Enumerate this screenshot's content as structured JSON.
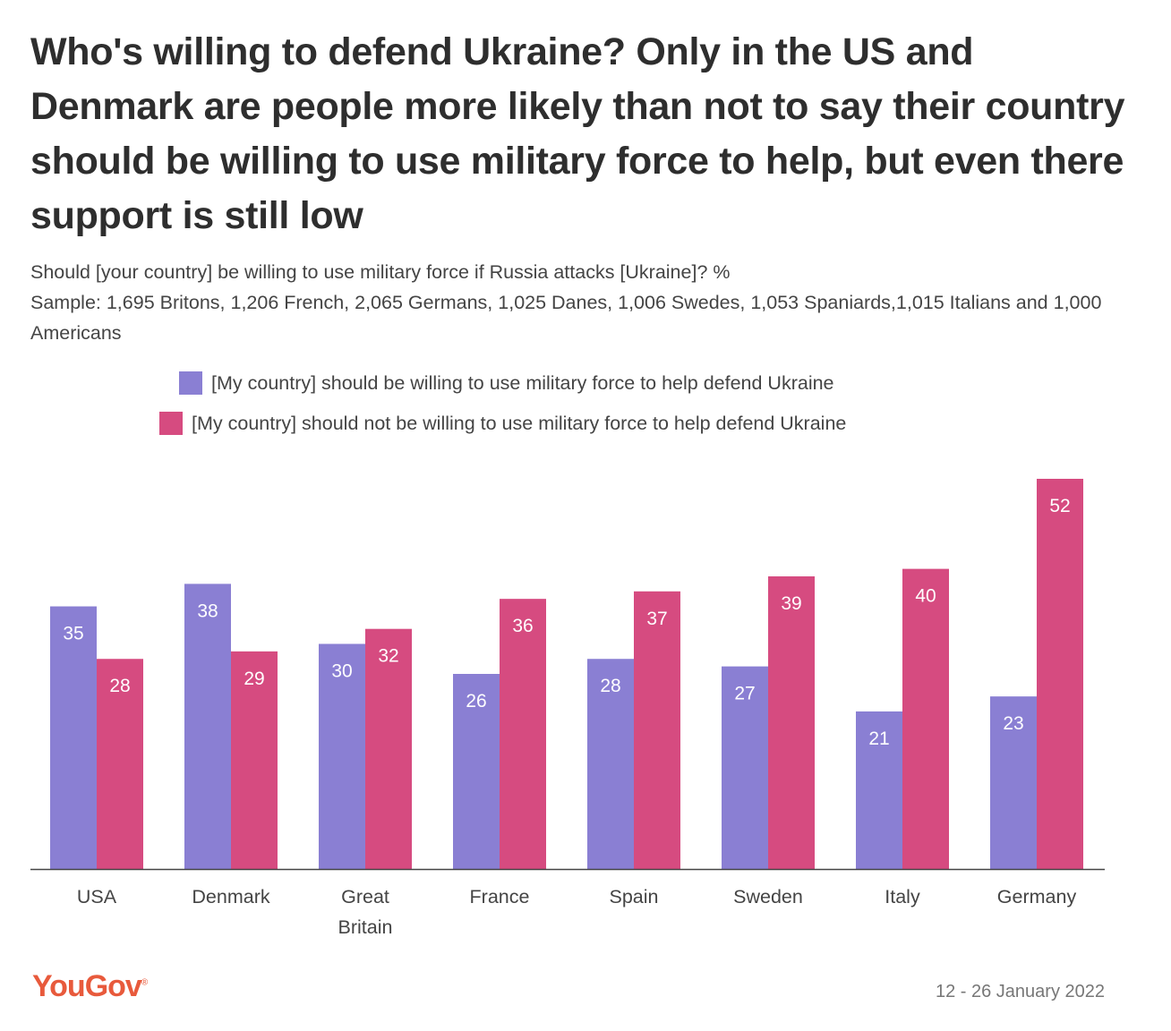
{
  "title": "Who's willing to defend Ukraine? Only in the US and Denmark are people more likely than not to say their country should be willing to use military force to help, but even there support is still low",
  "subtitle": {
    "question": "Should [your country] be willing to use military force if Russia attacks [Ukraine]? %",
    "sample": "Sample: 1,695 Britons, 1,206 French, 2,065 Germans, 1,025 Danes, 1,006 Swedes, 1,053 Spaniards,1,015 Italians and 1,000 Americans"
  },
  "legend": {
    "willing": "[My country] should be willing to use military force to help defend Ukraine",
    "not_willing": "[My country] should not be willing to use military force to help defend Ukraine"
  },
  "colors": {
    "willing": "#8a7fd3",
    "not_willing": "#d64b80",
    "axis": "#444444"
  },
  "chart_data": {
    "type": "bar",
    "categories": [
      [
        "USA"
      ],
      [
        "Denmark"
      ],
      [
        "Great",
        "Britain"
      ],
      [
        "France"
      ],
      [
        "Spain"
      ],
      [
        "Sweden"
      ],
      [
        "Italy"
      ],
      [
        "Germany"
      ]
    ],
    "series": [
      {
        "name": "[My country] should be willing to use military force to help defend Ukraine",
        "values": [
          35,
          38,
          30,
          26,
          28,
          27,
          21,
          23
        ]
      },
      {
        "name": "[My country] should not be willing to use military force to help defend Ukraine",
        "values": [
          28,
          29,
          32,
          36,
          37,
          39,
          40,
          52
        ]
      }
    ],
    "ylim": [
      0,
      52
    ],
    "xlabel": "",
    "ylabel": "",
    "grid": false
  },
  "footer": {
    "logo": "YouGov",
    "date": "12 - 26 January 2022"
  }
}
